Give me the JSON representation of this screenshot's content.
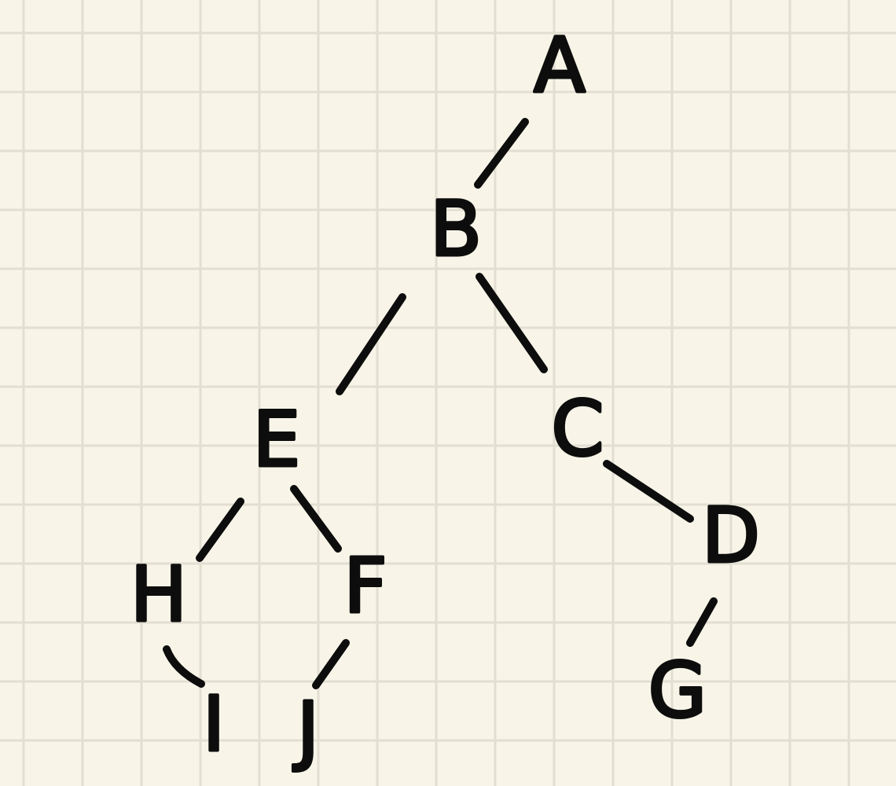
{
  "paper": {
    "background_color": "#f8f5e8",
    "grid_color": "#e2dfd2",
    "ink_color": "#0d0d0d"
  },
  "tree": {
    "nodes": [
      {
        "id": "A",
        "label": "A"
      },
      {
        "id": "B",
        "label": "B"
      },
      {
        "id": "C",
        "label": "C"
      },
      {
        "id": "D",
        "label": "D"
      },
      {
        "id": "E",
        "label": "E"
      },
      {
        "id": "F",
        "label": "F"
      },
      {
        "id": "G",
        "label": "G"
      },
      {
        "id": "H",
        "label": "H"
      },
      {
        "id": "I",
        "label": "I"
      },
      {
        "id": "J",
        "label": "J"
      }
    ],
    "edges": [
      {
        "from": "A",
        "to": "B"
      },
      {
        "from": "B",
        "to": "E"
      },
      {
        "from": "B",
        "to": "C"
      },
      {
        "from": "C",
        "to": "D"
      },
      {
        "from": "D",
        "to": "G"
      },
      {
        "from": "E",
        "to": "H"
      },
      {
        "from": "E",
        "to": "F"
      },
      {
        "from": "H",
        "to": "I"
      },
      {
        "from": "F",
        "to": "J"
      }
    ]
  }
}
